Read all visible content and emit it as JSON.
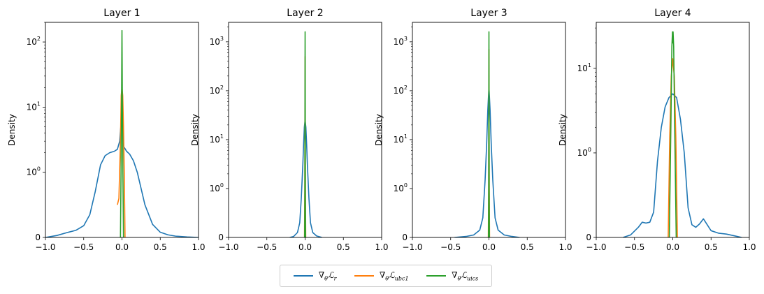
{
  "legend": {
    "items": [
      {
        "label": "∇θℒr",
        "main": "∇",
        "sub1": "θ",
        "mid": "ℒ",
        "sub2": "r",
        "color": "#1f77b4"
      },
      {
        "label": "∇θℒubc1",
        "main": "∇",
        "sub1": "θ",
        "mid": "ℒ",
        "sub2": "ubc1",
        "color": "#ff7f0e"
      },
      {
        "label": "∇θℒuics",
        "main": "∇",
        "sub1": "θ",
        "mid": "ℒ",
        "sub2": "uics",
        "color": "#2ca02c"
      }
    ]
  },
  "chart_data": [
    {
      "type": "line",
      "title": "Layer 1",
      "xlabel": "",
      "ylabel": "Density",
      "xlim": [
        -1,
        1
      ],
      "yscale": "symlog",
      "ylim": [
        0,
        200
      ],
      "xticks": [
        "−1.0",
        "−0.5",
        "0.0",
        "0.5",
        "1.0"
      ],
      "xtick_values": [
        -1,
        -0.5,
        0,
        0.5,
        1
      ],
      "yticks": [
        {
          "value": 0,
          "base": "0",
          "exp": ""
        },
        {
          "value": 1,
          "base": "10",
          "exp": "0"
        },
        {
          "value": 10,
          "base": "10",
          "exp": "1"
        },
        {
          "value": 100,
          "base": "10",
          "exp": "2"
        }
      ],
      "series": [
        {
          "name": "∇θℒr",
          "color": "#1f77b4",
          "x": [
            -1.0,
            -0.85,
            -0.7,
            -0.6,
            -0.5,
            -0.42,
            -0.35,
            -0.28,
            -0.22,
            -0.16,
            -0.1,
            -0.06,
            -0.03,
            -0.01,
            0.0,
            0.01,
            0.02,
            0.04,
            0.06,
            0.1,
            0.15,
            0.2,
            0.3,
            0.4,
            0.5,
            0.6,
            0.7,
            0.85,
            1.0
          ],
          "y": [
            0.0,
            0.03,
            0.08,
            0.11,
            0.18,
            0.35,
            0.7,
            1.3,
            1.8,
            2.0,
            2.1,
            2.25,
            3.0,
            6.0,
            12.0,
            6.0,
            2.5,
            2.3,
            2.1,
            1.9,
            1.5,
            1.0,
            0.5,
            0.2,
            0.08,
            0.04,
            0.02,
            0.008,
            0.0
          ]
        },
        {
          "name": "∇θℒubc1",
          "color": "#ff7f0e",
          "x": [
            -0.06,
            -0.04,
            -0.02,
            -0.01,
            0.0,
            0.01,
            0.02,
            0.03,
            0.04
          ],
          "y": [
            0.5,
            0.6,
            3.0,
            15.0,
            20.0,
            15.0,
            5.0,
            1.0,
            0.0
          ]
        },
        {
          "name": "∇θℒuics",
          "color": "#2ca02c",
          "x": [
            -0.02,
            -0.012,
            -0.006,
            -0.002,
            0.0,
            0.002,
            0.006,
            0.012,
            0.02
          ],
          "y": [
            0.0,
            1.0,
            8.0,
            60.0,
            150.0,
            60.0,
            8.0,
            1.0,
            0.0
          ]
        }
      ]
    },
    {
      "type": "line",
      "title": "Layer 2",
      "xlabel": "",
      "ylabel": "Density",
      "xlim": [
        -1,
        1
      ],
      "yscale": "symlog",
      "ylim": [
        0,
        2500
      ],
      "xticks": [
        "−1.0",
        "−0.5",
        "0.0",
        "0.5",
        "1.0"
      ],
      "xtick_values": [
        -1,
        -0.5,
        0,
        0.5,
        1
      ],
      "yticks": [
        {
          "value": 0,
          "base": "0",
          "exp": ""
        },
        {
          "value": 1,
          "base": "10",
          "exp": "0"
        },
        {
          "value": 10,
          "base": "10",
          "exp": "1"
        },
        {
          "value": 100,
          "base": "10",
          "exp": "2"
        },
        {
          "value": 1000,
          "base": "10",
          "exp": "3"
        }
      ],
      "series": [
        {
          "name": "∇θℒr",
          "color": "#1f77b4",
          "x": [
            -0.2,
            -0.15,
            -0.1,
            -0.07,
            -0.05,
            -0.03,
            -0.02,
            -0.01,
            0.0,
            0.01,
            0.02,
            0.03,
            0.05,
            0.07,
            0.1,
            0.15,
            0.22
          ],
          "y": [
            0.0,
            0.02,
            0.1,
            0.3,
            0.8,
            3.0,
            8.0,
            18.0,
            25.0,
            18.0,
            8.0,
            3.0,
            0.8,
            0.3,
            0.1,
            0.03,
            0.0
          ]
        },
        {
          "name": "∇θℒubc1",
          "color": "#ff7f0e",
          "x": [
            -0.008,
            -0.004,
            -0.002,
            0.0,
            0.002,
            0.004,
            0.008
          ],
          "y": [
            0.0,
            1.0,
            50.0,
            500.0,
            50.0,
            1.0,
            0.0
          ]
        },
        {
          "name": "∇θℒuics",
          "color": "#2ca02c",
          "x": [
            -0.006,
            -0.003,
            -0.0015,
            0.0,
            0.0015,
            0.003,
            0.006
          ],
          "y": [
            0.0,
            1.0,
            80.0,
            1600.0,
            80.0,
            1.0,
            0.0
          ]
        }
      ]
    },
    {
      "type": "line",
      "title": "Layer 3",
      "xlabel": "",
      "ylabel": "Density",
      "xlim": [
        -1,
        1
      ],
      "yscale": "symlog",
      "ylim": [
        0,
        2500
      ],
      "xticks": [
        "−1.0",
        "−0.5",
        "0.0",
        "0.5",
        "1.0"
      ],
      "xtick_values": [
        -1,
        -0.5,
        0,
        0.5,
        1
      ],
      "yticks": [
        {
          "value": 0,
          "base": "0",
          "exp": ""
        },
        {
          "value": 1,
          "base": "10",
          "exp": "0"
        },
        {
          "value": 10,
          "base": "10",
          "exp": "1"
        },
        {
          "value": 100,
          "base": "10",
          "exp": "2"
        },
        {
          "value": 1000,
          "base": "10",
          "exp": "3"
        }
      ],
      "series": [
        {
          "name": "∇θℒr",
          "color": "#1f77b4",
          "x": [
            -0.45,
            -0.3,
            -0.2,
            -0.12,
            -0.08,
            -0.05,
            -0.03,
            -0.015,
            0.0,
            0.015,
            0.03,
            0.05,
            0.08,
            0.12,
            0.2,
            0.3,
            0.4
          ],
          "y": [
            0.0,
            0.02,
            0.05,
            0.15,
            0.4,
            1.5,
            8.0,
            40.0,
            120.0,
            40.0,
            8.0,
            1.5,
            0.4,
            0.15,
            0.05,
            0.02,
            0.0
          ]
        },
        {
          "name": "∇θℒubc1",
          "color": "#ff7f0e",
          "x": [
            -0.008,
            -0.004,
            -0.002,
            0.0,
            0.002,
            0.004,
            0.008
          ],
          "y": [
            0.0,
            1.0,
            60.0,
            700.0,
            60.0,
            1.0,
            0.0
          ]
        },
        {
          "name": "∇θℒuics",
          "color": "#2ca02c",
          "x": [
            -0.006,
            -0.003,
            -0.0015,
            0.0,
            0.0015,
            0.003,
            0.006
          ],
          "y": [
            0.0,
            1.0,
            80.0,
            1600.0,
            80.0,
            1.0,
            0.0
          ]
        }
      ]
    },
    {
      "type": "line",
      "title": "Layer 4",
      "xlabel": "",
      "ylabel": "Density",
      "xlim": [
        -1,
        1
      ],
      "yscale": "symlog",
      "ylim": [
        0,
        35
      ],
      "xticks": [
        "−1.0",
        "−0.5",
        "0.0",
        "0.5",
        "1.0"
      ],
      "xtick_values": [
        -1,
        -0.5,
        0,
        0.5,
        1
      ],
      "yticks": [
        {
          "value": 0,
          "base": "0",
          "exp": ""
        },
        {
          "value": 1,
          "base": "10",
          "exp": "0"
        },
        {
          "value": 10,
          "base": "10",
          "exp": "1"
        }
      ],
      "series": [
        {
          "name": "∇θℒr",
          "color": "#1f77b4",
          "x": [
            -0.65,
            -0.55,
            -0.45,
            -0.4,
            -0.35,
            -0.3,
            -0.25,
            -0.2,
            -0.15,
            -0.1,
            -0.05,
            0.0,
            0.05,
            0.1,
            0.15,
            0.2,
            0.25,
            0.3,
            0.35,
            0.4,
            0.45,
            0.5,
            0.6,
            0.7,
            0.8,
            0.9
          ],
          "y": [
            0.0,
            0.03,
            0.12,
            0.18,
            0.17,
            0.18,
            0.3,
            0.9,
            2.0,
            3.5,
            4.5,
            5.0,
            4.5,
            2.5,
            1.0,
            0.35,
            0.15,
            0.12,
            0.16,
            0.22,
            0.15,
            0.08,
            0.05,
            0.04,
            0.02,
            0.0
          ]
        },
        {
          "name": "∇θℒubc1",
          "color": "#ff7f0e",
          "x": [
            -0.06,
            -0.04,
            -0.02,
            0.0,
            0.02,
            0.04,
            0.06
          ],
          "y": [
            0.0,
            1.5,
            8.0,
            13.0,
            8.0,
            1.5,
            0.0
          ]
        },
        {
          "name": "∇θℒuics",
          "color": "#2ca02c",
          "x": [
            -0.045,
            -0.025,
            -0.012,
            -0.004,
            0.0,
            0.004,
            0.012,
            0.025,
            0.045
          ],
          "y": [
            0.0,
            2.0,
            18.0,
            27.0,
            20.0,
            27.0,
            18.0,
            2.0,
            0.0
          ]
        }
      ]
    }
  ]
}
